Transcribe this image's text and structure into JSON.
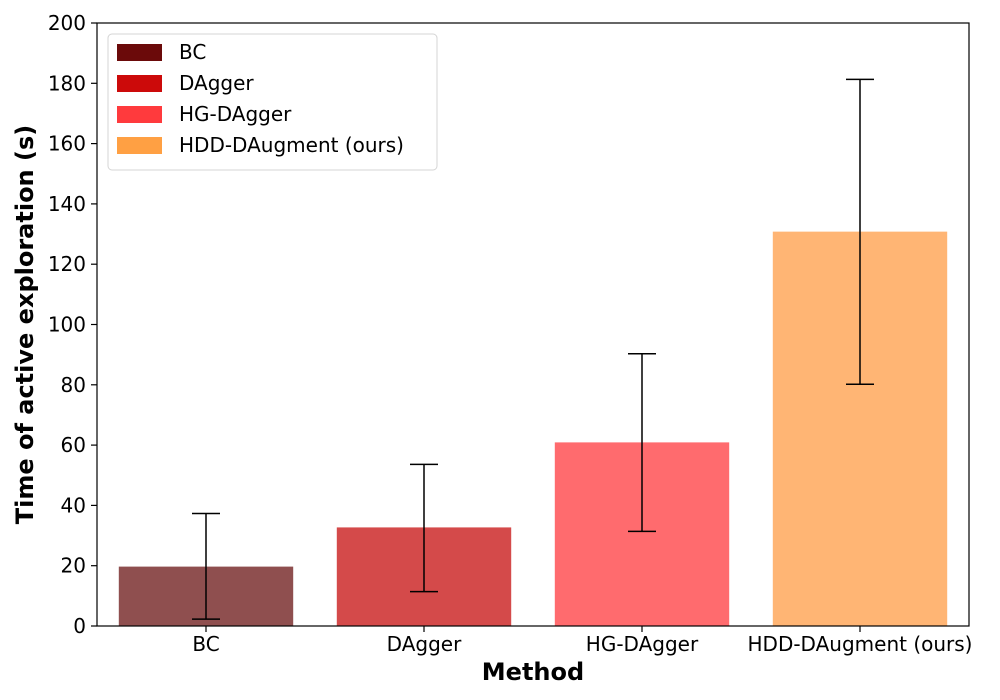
{
  "chart_data": {
    "type": "bar",
    "categories": [
      "BC",
      "DAgger",
      "HG-DAgger",
      "HDD-DAugment (ours)"
    ],
    "values": [
      19.7,
      32.7,
      60.9,
      130.8
    ],
    "error_low": [
      2.3,
      11.4,
      31.4,
      80.2
    ],
    "error_high": [
      37.3,
      53.6,
      90.3,
      181.3
    ],
    "bar_colors": [
      "#8f4f4f",
      "#d44a4a",
      "#ff6b6e",
      "#ffb574"
    ],
    "legend": {
      "placement": "top-left",
      "entries": [
        {
          "label": "BC",
          "color": "#6b0a0a"
        },
        {
          "label": "DAgger",
          "color": "#cc0a0a"
        },
        {
          "label": "HG-DAgger",
          "color": "#ff3a3d"
        },
        {
          "label": "HDD-DAugment (ours)",
          "color": "#ffa043"
        }
      ]
    },
    "xlabel": "Method",
    "ylabel": "Time of active exploration (s)",
    "ylim": [
      0,
      200
    ],
    "yticks": [
      0,
      20,
      40,
      60,
      80,
      100,
      120,
      140,
      160,
      180,
      200
    ],
    "grid": false
  }
}
